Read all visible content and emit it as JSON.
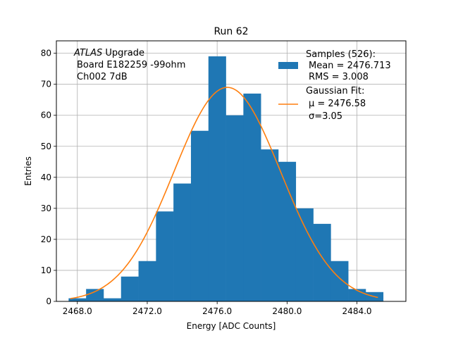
{
  "chart_data": {
    "type": "bar",
    "title": "Run 62",
    "xlabel": "Energy [ADC Counts]",
    "ylabel": "Entries",
    "xlim": [
      2466.8,
      2486.8
    ],
    "ylim": [
      0,
      84
    ],
    "xticks": [
      2468.0,
      2472.0,
      2476.0,
      2480.0,
      2484.0
    ],
    "xtick_labels": [
      "2468.0",
      "2472.0",
      "2476.0",
      "2480.0",
      "2484.0"
    ],
    "yticks": [
      0,
      10,
      20,
      30,
      40,
      50,
      60,
      70,
      80
    ],
    "ytick_labels": [
      "0",
      "10",
      "20",
      "30",
      "40",
      "50",
      "60",
      "70",
      "80"
    ],
    "grid": true,
    "bin_edges": [
      2467.5,
      2468.5,
      2469.5,
      2470.5,
      2471.5,
      2472.5,
      2473.5,
      2474.5,
      2475.5,
      2476.5,
      2477.5,
      2478.5,
      2479.5,
      2480.5,
      2481.5,
      2482.5,
      2483.5,
      2484.5,
      2485.5
    ],
    "counts": [
      1,
      4,
      1,
      8,
      13,
      29,
      38,
      55,
      79,
      60,
      67,
      49,
      45,
      30,
      25,
      13,
      4,
      3,
      2
    ],
    "bar_color": "#1f77b4",
    "fit": {
      "mu": 2476.58,
      "sigma": 3.05,
      "amplitude": 69,
      "x_range": [
        2467.6,
        2485.2
      ],
      "color": "#ff7f0e"
    },
    "annotation": {
      "italic_part": "ATLAS",
      "line1_rest": " Upgrade",
      "line2": "Board E182259 -99ohm",
      "line3": "Ch002 7dB"
    },
    "legend": {
      "placement": "top-right",
      "samples_header": "Samples (526):",
      "samples_mean": "Mean = 2476.713",
      "samples_rms": "RMS = 3.008",
      "fit_header": "Gaussian Fit:",
      "fit_mu": "μ = 2476.58",
      "fit_sigma": "σ=3.05"
    }
  }
}
